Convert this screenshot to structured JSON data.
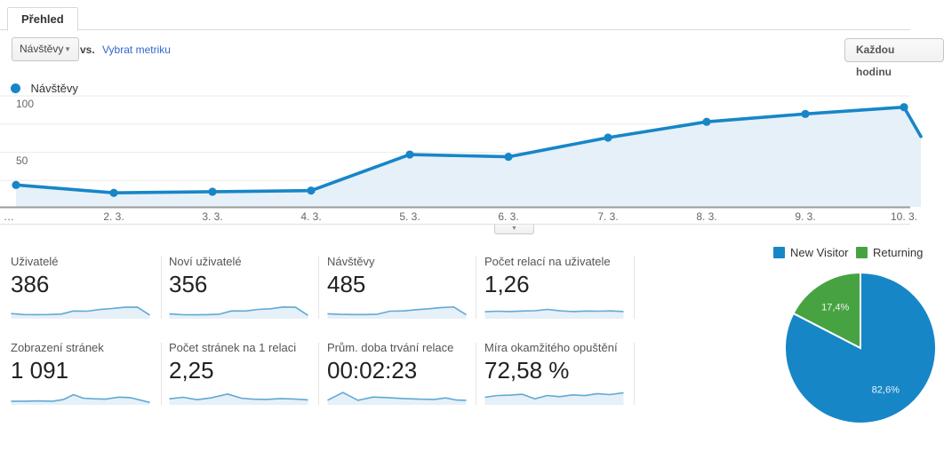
{
  "tabs": {
    "overview": "Přehled"
  },
  "toolbar": {
    "metric_selector": "Návštěvy",
    "vs": "vs.",
    "select_metric_link": "Vybrat metriku",
    "granularity_button": "Každou hodinu"
  },
  "series_legend": {
    "label": "Návštěvy"
  },
  "colors": {
    "line_blue": "#1786c7",
    "spark_blue": "#61a9d6",
    "area_fill": "#e6f0f8",
    "pie_blue": "#1786c7",
    "pie_green": "#47a342",
    "grid": "#ebebeb",
    "axis": "#9b9b9b"
  },
  "chart_data": [
    {
      "type": "line",
      "title": "Návštěvy",
      "x": [
        "…",
        "2. 3.",
        "3. 3.",
        "4. 3.",
        "5. 3.",
        "6. 3.",
        "7. 3.",
        "8. 3.",
        "9. 3.",
        "10. 3."
      ],
      "values": [
        21,
        14,
        15,
        16,
        48,
        46,
        63,
        77,
        84,
        90
      ],
      "px": [
        18,
        128,
        239,
        350,
        461,
        572,
        684,
        795,
        906,
        1017
      ],
      "tail": [
        1036,
        64
      ],
      "ylim": [
        0,
        100
      ],
      "yticks": [
        25,
        50,
        75,
        100
      ],
      "ytick_labels": [
        "50",
        "100"
      ],
      "grid": true,
      "legend_position": "top-left"
    },
    {
      "type": "pie",
      "slices": [
        {
          "name": "New Visitor",
          "value": 82.6,
          "label": "82,6%",
          "color": "#1786c7"
        },
        {
          "name": "Returning",
          "value": 17.4,
          "label": "17,4%",
          "color": "#47a342"
        }
      ],
      "legend_position": "top-right"
    }
  ],
  "axis_labels": {
    "y100": "100",
    "y50": "50"
  },
  "expander_icon": "▼",
  "dropdown_caret": "▼",
  "cards": [
    {
      "label": "Uživatelé",
      "value": "386",
      "spark": [
        [
          0,
          0.28
        ],
        [
          9,
          0.22
        ],
        [
          18,
          0.21
        ],
        [
          27,
          0.22
        ],
        [
          36,
          0.25
        ],
        [
          45,
          0.45
        ],
        [
          55,
          0.44
        ],
        [
          64,
          0.55
        ],
        [
          73,
          0.62
        ],
        [
          82,
          0.7
        ],
        [
          91,
          0.71
        ],
        [
          100,
          0.18
        ]
      ]
    },
    {
      "label": "Noví uživatelé",
      "value": "356",
      "spark": [
        [
          0,
          0.26
        ],
        [
          9,
          0.21
        ],
        [
          18,
          0.2
        ],
        [
          27,
          0.21
        ],
        [
          36,
          0.24
        ],
        [
          45,
          0.46
        ],
        [
          55,
          0.45
        ],
        [
          64,
          0.56
        ],
        [
          73,
          0.6
        ],
        [
          82,
          0.72
        ],
        [
          91,
          0.7
        ],
        [
          100,
          0.16
        ]
      ]
    },
    {
      "label": "Návštěvy",
      "value": "485",
      "spark": [
        [
          0,
          0.27
        ],
        [
          9,
          0.23
        ],
        [
          18,
          0.22
        ],
        [
          27,
          0.22
        ],
        [
          36,
          0.24
        ],
        [
          45,
          0.44
        ],
        [
          55,
          0.46
        ],
        [
          64,
          0.54
        ],
        [
          73,
          0.6
        ],
        [
          82,
          0.68
        ],
        [
          91,
          0.72
        ],
        [
          100,
          0.2
        ]
      ]
    },
    {
      "label": "Počet relací na uživatele",
      "value": "1,26",
      "spark": [
        [
          0,
          0.4
        ],
        [
          9,
          0.44
        ],
        [
          18,
          0.42
        ],
        [
          27,
          0.45
        ],
        [
          36,
          0.47
        ],
        [
          45,
          0.56
        ],
        [
          55,
          0.46
        ],
        [
          64,
          0.42
        ],
        [
          73,
          0.45
        ],
        [
          82,
          0.44
        ],
        [
          91,
          0.46
        ],
        [
          100,
          0.42
        ]
      ]
    },
    {
      "label": "Zobrazení stránek",
      "value": "1 091",
      "spark": [
        [
          0,
          0.18
        ],
        [
          10,
          0.18
        ],
        [
          20,
          0.2
        ],
        [
          30,
          0.18
        ],
        [
          38,
          0.3
        ],
        [
          45,
          0.62
        ],
        [
          52,
          0.38
        ],
        [
          60,
          0.34
        ],
        [
          68,
          0.32
        ],
        [
          78,
          0.45
        ],
        [
          86,
          0.42
        ],
        [
          100,
          0.1
        ]
      ]
    },
    {
      "label": "Počet stránek na 1 relaci",
      "value": "2,25",
      "spark": [
        [
          0,
          0.34
        ],
        [
          10,
          0.44
        ],
        [
          20,
          0.28
        ],
        [
          30,
          0.4
        ],
        [
          42,
          0.66
        ],
        [
          52,
          0.38
        ],
        [
          60,
          0.32
        ],
        [
          70,
          0.3
        ],
        [
          80,
          0.36
        ],
        [
          90,
          0.33
        ],
        [
          100,
          0.27
        ]
      ]
    },
    {
      "label": "Prům. doba trvání relace",
      "value": "00:02:23",
      "spark": [
        [
          0,
          0.25
        ],
        [
          11,
          0.76
        ],
        [
          22,
          0.24
        ],
        [
          33,
          0.46
        ],
        [
          44,
          0.42
        ],
        [
          55,
          0.36
        ],
        [
          66,
          0.32
        ],
        [
          77,
          0.3
        ],
        [
          85,
          0.4
        ],
        [
          93,
          0.26
        ],
        [
          100,
          0.24
        ]
      ]
    },
    {
      "label": "Míra okamžitého opuštění",
      "value": "72,58 %",
      "spark": [
        [
          0,
          0.44
        ],
        [
          9,
          0.56
        ],
        [
          18,
          0.58
        ],
        [
          27,
          0.64
        ],
        [
          36,
          0.34
        ],
        [
          45,
          0.56
        ],
        [
          54,
          0.48
        ],
        [
          63,
          0.6
        ],
        [
          72,
          0.55
        ],
        [
          81,
          0.68
        ],
        [
          90,
          0.62
        ],
        [
          100,
          0.74
        ]
      ]
    }
  ],
  "pie_legend": [
    {
      "label": "New Visitor",
      "color": "#1786c7"
    },
    {
      "label": "Returning",
      "color": "#47a342"
    }
  ]
}
